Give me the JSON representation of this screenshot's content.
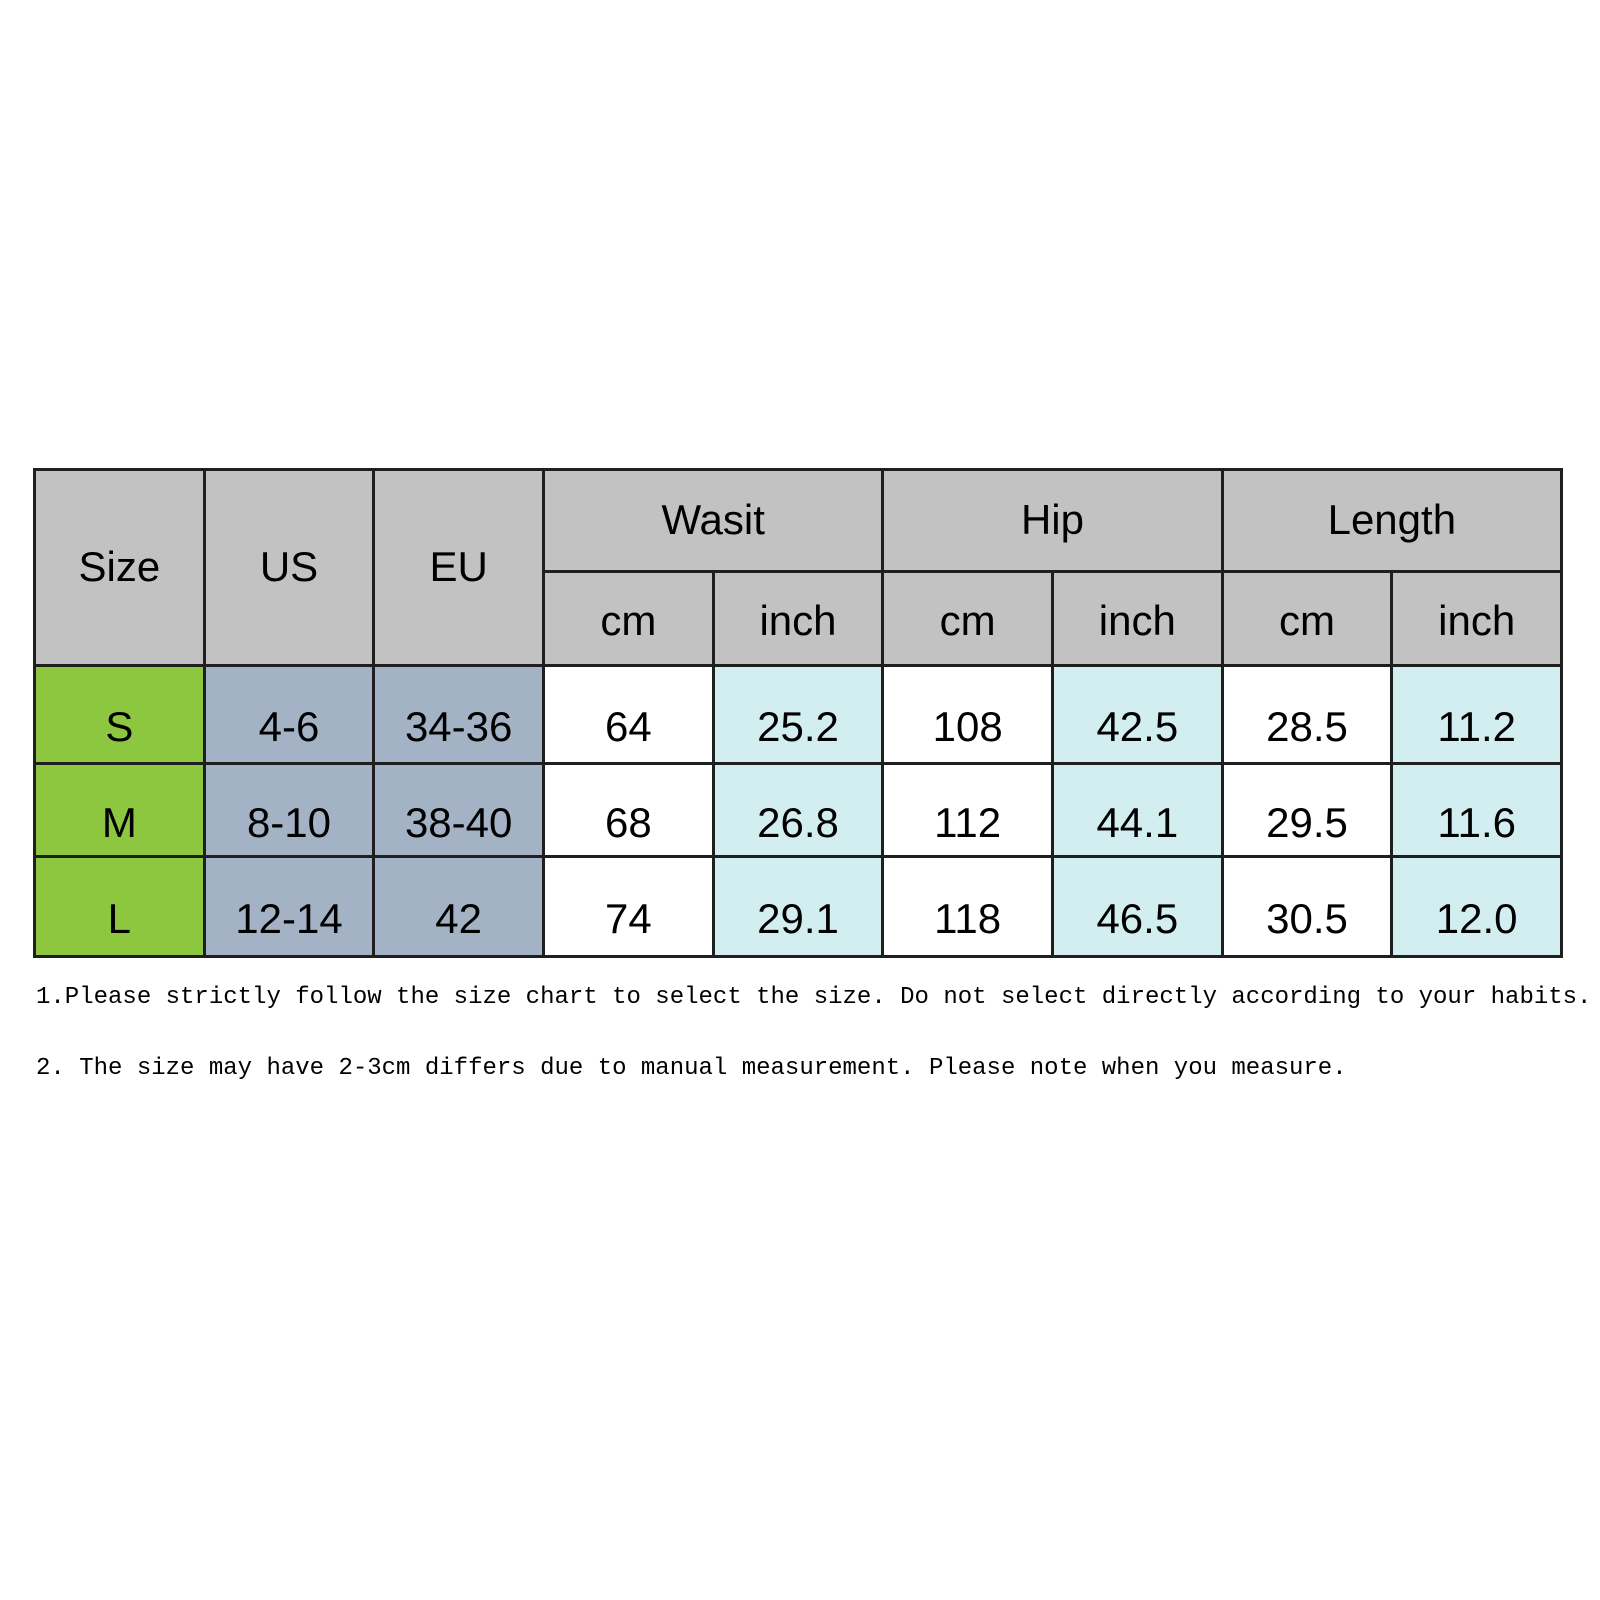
{
  "table": {
    "headers": {
      "size": "Size",
      "us": "US",
      "eu": "EU",
      "waist": "Wasit",
      "hip": "Hip",
      "length": "Length",
      "cm": "cm",
      "inch": "inch"
    },
    "rows": [
      {
        "size": "S",
        "us": "4-6",
        "eu": "34-36",
        "waist_cm": "64",
        "waist_inch": "25.2",
        "hip_cm": "108",
        "hip_inch": "42.5",
        "length_cm": "28.5",
        "length_inch": "11.2"
      },
      {
        "size": "M",
        "us": "8-10",
        "eu": "38-40",
        "waist_cm": "68",
        "waist_inch": "26.8",
        "hip_cm": "112",
        "hip_inch": "44.1",
        "length_cm": "29.5",
        "length_inch": "11.6"
      },
      {
        "size": "L",
        "us": "12-14",
        "eu": "42",
        "waist_cm": "74",
        "waist_inch": "29.1",
        "hip_cm": "118",
        "hip_inch": "46.5",
        "length_cm": "30.5",
        "length_inch": "12.0"
      }
    ]
  },
  "notes": [
    "1.Please strictly follow the size chart to select the size. Do not select directly according to your habits.",
    "2. The size may have 2-3cm differs due to manual measurement. Please note when you measure."
  ],
  "colors": {
    "header_bg": "#c2c2c2",
    "size_col_bg": "#8dc63f",
    "us_eu_col_bg": "#a3b2c4",
    "cm_col_bg": "#ffffff",
    "inch_col_bg": "#d3eef0",
    "gridline": "#1f1f1f",
    "page_bg": "#ffffff",
    "text": "#000000"
  }
}
